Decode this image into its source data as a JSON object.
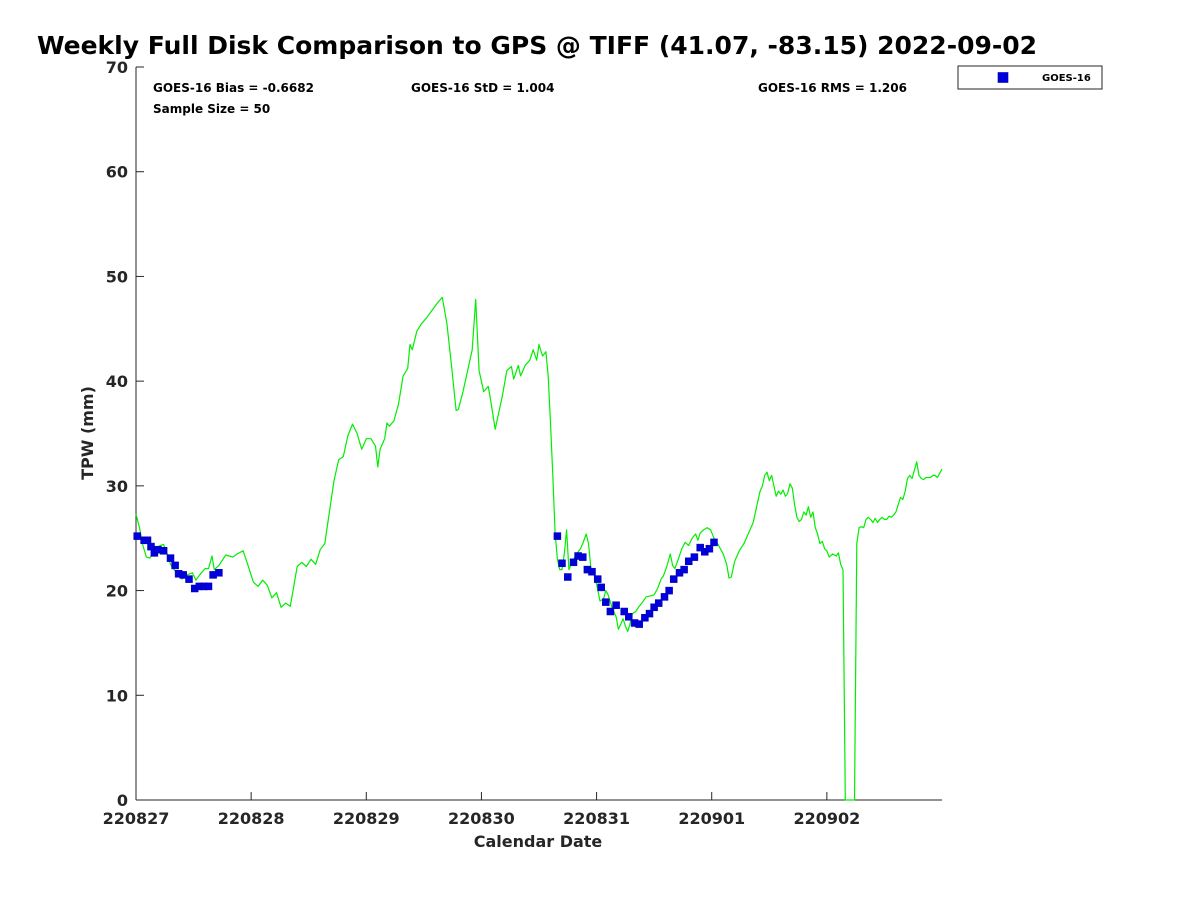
{
  "chart_data": {
    "type": "line",
    "title": "Weekly Full Disk Comparison to GPS @ TIFF (41.07, -83.15) 2022-09-02",
    "xlabel": "Calendar Date",
    "ylabel": "TPW (mm)",
    "xlim": [
      0,
      7
    ],
    "ylim": [
      0,
      70
    ],
    "x_ticks": [
      {
        "value": 0,
        "label": "220827"
      },
      {
        "value": 1,
        "label": "220828"
      },
      {
        "value": 2,
        "label": "220829"
      },
      {
        "value": 3,
        "label": "220830"
      },
      {
        "value": 4,
        "label": "220831"
      },
      {
        "value": 5,
        "label": "220901"
      },
      {
        "value": 6,
        "label": "220902"
      }
    ],
    "y_ticks": [
      0,
      10,
      20,
      30,
      40,
      50,
      60,
      70
    ],
    "grid": false,
    "stats": {
      "bias": "GOES-16 Bias = -0.6682",
      "std": "GOES-16 StD = 1.004",
      "rms": "GOES-16 RMS = 1.206",
      "sample_size": "Sample Size = 50"
    },
    "legend": {
      "placement": "outside-top-right",
      "entries": [
        "GOES-16"
      ]
    },
    "series": [
      {
        "kind": "line",
        "color": "#00ee00",
        "points": [
          [
            0.0,
            27.3
          ],
          [
            0.03,
            26.0
          ],
          [
            0.06,
            24.3
          ],
          [
            0.09,
            23.2
          ],
          [
            0.12,
            23.1
          ],
          [
            0.15,
            23.6
          ],
          [
            0.18,
            24.1
          ],
          [
            0.21,
            24.3
          ],
          [
            0.24,
            24.4
          ],
          [
            0.27,
            23.5
          ],
          [
            0.3,
            22.5
          ],
          [
            0.33,
            22.0
          ],
          [
            0.36,
            21.6
          ],
          [
            0.4,
            21.1
          ],
          [
            0.44,
            21.5
          ],
          [
            0.49,
            21.7
          ],
          [
            0.52,
            21.0
          ],
          [
            0.56,
            21.6
          ],
          [
            0.6,
            22.1
          ],
          [
            0.63,
            22.1
          ],
          [
            0.66,
            23.3
          ],
          [
            0.68,
            22.0
          ],
          [
            0.72,
            22.4
          ],
          [
            0.78,
            23.4
          ],
          [
            0.84,
            23.2
          ],
          [
            0.88,
            23.5
          ],
          [
            0.93,
            23.8
          ],
          [
            0.97,
            22.5
          ],
          [
            1.02,
            20.8
          ],
          [
            1.06,
            20.4
          ],
          [
            1.1,
            21.0
          ],
          [
            1.14,
            20.5
          ],
          [
            1.18,
            19.3
          ],
          [
            1.22,
            19.8
          ],
          [
            1.26,
            18.4
          ],
          [
            1.3,
            18.8
          ],
          [
            1.34,
            18.5
          ],
          [
            1.4,
            22.3
          ],
          [
            1.44,
            22.7
          ],
          [
            1.48,
            22.3
          ],
          [
            1.52,
            23.0
          ],
          [
            1.56,
            22.5
          ],
          [
            1.6,
            23.9
          ],
          [
            1.64,
            24.5
          ],
          [
            1.68,
            27.5
          ],
          [
            1.72,
            30.5
          ],
          [
            1.76,
            32.5
          ],
          [
            1.8,
            32.8
          ],
          [
            1.84,
            34.8
          ],
          [
            1.88,
            35.9
          ],
          [
            1.92,
            35.0
          ],
          [
            1.96,
            33.5
          ],
          [
            2.0,
            34.5
          ],
          [
            2.04,
            34.5
          ],
          [
            2.08,
            33.8
          ],
          [
            2.1,
            31.8
          ],
          [
            2.12,
            33.5
          ],
          [
            2.16,
            34.5
          ],
          [
            2.18,
            36.0
          ],
          [
            2.2,
            35.7
          ],
          [
            2.24,
            36.2
          ],
          [
            2.28,
            37.8
          ],
          [
            2.32,
            40.5
          ],
          [
            2.36,
            41.2
          ],
          [
            2.38,
            43.5
          ],
          [
            2.4,
            43.0
          ],
          [
            2.44,
            44.8
          ],
          [
            2.48,
            45.5
          ],
          [
            2.52,
            46.0
          ],
          [
            2.56,
            46.6
          ],
          [
            2.62,
            47.5
          ],
          [
            2.66,
            48.0
          ],
          [
            2.7,
            45.5
          ],
          [
            2.74,
            41.5
          ],
          [
            2.78,
            37.2
          ],
          [
            2.8,
            37.3
          ],
          [
            2.84,
            39.0
          ],
          [
            2.88,
            41.0
          ],
          [
            2.92,
            43.0
          ],
          [
            2.95,
            47.8
          ],
          [
            2.98,
            41.0
          ],
          [
            3.02,
            39.0
          ],
          [
            3.06,
            39.5
          ],
          [
            3.08,
            38.2
          ],
          [
            3.12,
            35.4
          ],
          [
            3.16,
            37.5
          ],
          [
            3.18,
            38.5
          ],
          [
            3.22,
            41.0
          ],
          [
            3.26,
            41.4
          ],
          [
            3.28,
            40.2
          ],
          [
            3.32,
            41.5
          ],
          [
            3.34,
            40.5
          ],
          [
            3.38,
            41.5
          ],
          [
            3.42,
            42.0
          ],
          [
            3.45,
            43.0
          ],
          [
            3.48,
            42.0
          ],
          [
            3.5,
            43.5
          ],
          [
            3.53,
            42.4
          ],
          [
            3.56,
            42.8
          ],
          [
            3.58,
            40.5
          ],
          [
            3.6,
            36.0
          ],
          [
            3.62,
            31.0
          ],
          [
            3.64,
            25.5
          ],
          [
            3.66,
            23.0
          ],
          [
            3.68,
            22.0
          ],
          [
            3.7,
            22.0
          ],
          [
            3.72,
            23.5
          ],
          [
            3.74,
            25.8
          ],
          [
            3.76,
            22.0
          ],
          [
            3.78,
            22.5
          ],
          [
            3.82,
            23.4
          ],
          [
            3.86,
            24.0
          ],
          [
            3.88,
            24.5
          ],
          [
            3.91,
            25.4
          ],
          [
            3.93,
            24.5
          ],
          [
            3.95,
            22.2
          ],
          [
            3.98,
            21.5
          ],
          [
            4.0,
            20.6
          ],
          [
            4.03,
            19.0
          ],
          [
            4.06,
            19.2
          ],
          [
            4.08,
            20.0
          ],
          [
            4.1,
            19.6
          ],
          [
            4.14,
            18.2
          ],
          [
            4.17,
            17.5
          ],
          [
            4.19,
            16.3
          ],
          [
            4.21,
            16.8
          ],
          [
            4.23,
            17.3
          ],
          [
            4.25,
            16.6
          ],
          [
            4.27,
            16.1
          ],
          [
            4.29,
            16.8
          ],
          [
            4.31,
            17.8
          ],
          [
            4.34,
            18.0
          ],
          [
            4.37,
            18.5
          ],
          [
            4.4,
            18.9
          ],
          [
            4.43,
            19.4
          ],
          [
            4.47,
            19.5
          ],
          [
            4.5,
            19.6
          ],
          [
            4.53,
            20.2
          ],
          [
            4.56,
            21.1
          ],
          [
            4.58,
            21.4
          ],
          [
            4.61,
            22.3
          ],
          [
            4.64,
            23.5
          ],
          [
            4.66,
            22.4
          ],
          [
            4.68,
            22.1
          ],
          [
            4.71,
            23.0
          ],
          [
            4.74,
            24.0
          ],
          [
            4.77,
            24.6
          ],
          [
            4.8,
            24.3
          ],
          [
            4.83,
            25.0
          ],
          [
            4.86,
            25.4
          ],
          [
            4.88,
            24.8
          ],
          [
            4.9,
            25.5
          ],
          [
            4.93,
            25.8
          ],
          [
            4.96,
            26.0
          ],
          [
            4.99,
            25.8
          ],
          [
            5.02,
            25.0
          ],
          [
            5.06,
            24.3
          ],
          [
            5.1,
            23.5
          ],
          [
            5.13,
            22.5
          ],
          [
            5.15,
            21.2
          ],
          [
            5.17,
            21.3
          ],
          [
            5.2,
            22.8
          ],
          [
            5.24,
            23.8
          ],
          [
            5.28,
            24.5
          ],
          [
            5.32,
            25.5
          ],
          [
            5.36,
            26.5
          ],
          [
            5.39,
            28.0
          ],
          [
            5.42,
            29.5
          ],
          [
            5.44,
            30.0
          ],
          [
            5.46,
            31.0
          ],
          [
            5.48,
            31.3
          ],
          [
            5.5,
            30.5
          ],
          [
            5.52,
            31.0
          ],
          [
            5.54,
            30.0
          ],
          [
            5.56,
            29.0
          ],
          [
            5.58,
            29.5
          ],
          [
            5.6,
            29.2
          ],
          [
            5.62,
            29.6
          ],
          [
            5.64,
            29.0
          ],
          [
            5.66,
            29.3
          ],
          [
            5.68,
            30.2
          ],
          [
            5.7,
            29.8
          ],
          [
            5.72,
            28.2
          ],
          [
            5.74,
            27.0
          ],
          [
            5.76,
            26.6
          ],
          [
            5.78,
            26.8
          ],
          [
            5.8,
            27.5
          ],
          [
            5.82,
            27.2
          ],
          [
            5.84,
            28.0
          ],
          [
            5.86,
            27.0
          ],
          [
            5.88,
            27.5
          ],
          [
            5.9,
            26.0
          ],
          [
            5.92,
            25.4
          ],
          [
            5.94,
            24.5
          ],
          [
            5.96,
            24.7
          ],
          [
            5.98,
            24.0
          ],
          [
            6.0,
            23.8
          ],
          [
            6.02,
            23.2
          ],
          [
            6.05,
            23.5
          ],
          [
            6.08,
            23.3
          ],
          [
            6.1,
            23.6
          ],
          [
            6.12,
            22.5
          ],
          [
            6.14,
            22.0
          ],
          [
            6.16,
            0
          ],
          [
            6.19,
            0
          ],
          [
            6.22,
            0
          ],
          [
            6.24,
            0
          ],
          [
            6.26,
            24.5
          ],
          [
            6.28,
            26.0
          ],
          [
            6.3,
            26.1
          ],
          [
            6.32,
            26.0
          ],
          [
            6.34,
            26.8
          ],
          [
            6.36,
            27.0
          ],
          [
            6.38,
            26.8
          ],
          [
            6.4,
            26.5
          ],
          [
            6.42,
            26.9
          ],
          [
            6.44,
            26.5
          ],
          [
            6.46,
            26.8
          ],
          [
            6.48,
            27.0
          ],
          [
            6.5,
            26.8
          ],
          [
            6.52,
            26.8
          ],
          [
            6.54,
            27.1
          ],
          [
            6.56,
            27.0
          ],
          [
            6.58,
            27.2
          ],
          [
            6.6,
            27.5
          ],
          [
            6.62,
            28.2
          ],
          [
            6.64,
            28.9
          ],
          [
            6.66,
            28.7
          ],
          [
            6.68,
            29.5
          ],
          [
            6.7,
            30.7
          ],
          [
            6.72,
            31.0
          ],
          [
            6.74,
            30.7
          ],
          [
            6.76,
            31.5
          ],
          [
            6.78,
            32.3
          ],
          [
            6.8,
            31.0
          ],
          [
            6.82,
            30.7
          ],
          [
            6.84,
            30.6
          ],
          [
            6.86,
            30.8
          ],
          [
            6.88,
            30.8
          ],
          [
            6.9,
            30.8
          ],
          [
            6.92,
            31.0
          ],
          [
            6.94,
            31.0
          ],
          [
            6.96,
            30.8
          ],
          [
            6.98,
            31.2
          ],
          [
            7.0,
            31.6
          ]
        ]
      },
      {
        "name": "GOES-16",
        "kind": "scatter",
        "color": "#0000dd",
        "points": [
          [
            0.01,
            25.2
          ],
          [
            0.07,
            24.8
          ],
          [
            0.1,
            24.8
          ],
          [
            0.13,
            24.2
          ],
          [
            0.16,
            23.6
          ],
          [
            0.19,
            23.9
          ],
          [
            0.24,
            23.8
          ],
          [
            0.3,
            23.1
          ],
          [
            0.34,
            22.4
          ],
          [
            0.37,
            21.6
          ],
          [
            0.41,
            21.5
          ],
          [
            0.46,
            21.1
          ],
          [
            0.51,
            20.2
          ],
          [
            0.55,
            20.4
          ],
          [
            0.59,
            20.4
          ],
          [
            0.63,
            20.4
          ],
          [
            0.67,
            21.5
          ],
          [
            0.72,
            21.7
          ],
          [
            3.66,
            25.2
          ],
          [
            3.7,
            22.6
          ],
          [
            3.75,
            21.3
          ],
          [
            3.8,
            22.7
          ],
          [
            3.84,
            23.3
          ],
          [
            3.88,
            23.2
          ],
          [
            3.92,
            22.0
          ],
          [
            3.96,
            21.8
          ],
          [
            4.01,
            21.1
          ],
          [
            4.04,
            20.3
          ],
          [
            4.08,
            18.9
          ],
          [
            4.12,
            18.0
          ],
          [
            4.17,
            18.6
          ],
          [
            4.24,
            18.0
          ],
          [
            4.28,
            17.5
          ],
          [
            4.33,
            16.9
          ],
          [
            4.37,
            16.8
          ],
          [
            4.42,
            17.4
          ],
          [
            4.46,
            17.8
          ],
          [
            4.5,
            18.4
          ],
          [
            4.54,
            18.8
          ],
          [
            4.59,
            19.4
          ],
          [
            4.63,
            20.0
          ],
          [
            4.67,
            21.1
          ],
          [
            4.72,
            21.7
          ],
          [
            4.76,
            22.0
          ],
          [
            4.8,
            22.8
          ],
          [
            4.85,
            23.2
          ],
          [
            4.9,
            24.1
          ],
          [
            4.94,
            23.7
          ],
          [
            4.98,
            24.0
          ],
          [
            5.02,
            24.6
          ]
        ]
      }
    ]
  }
}
